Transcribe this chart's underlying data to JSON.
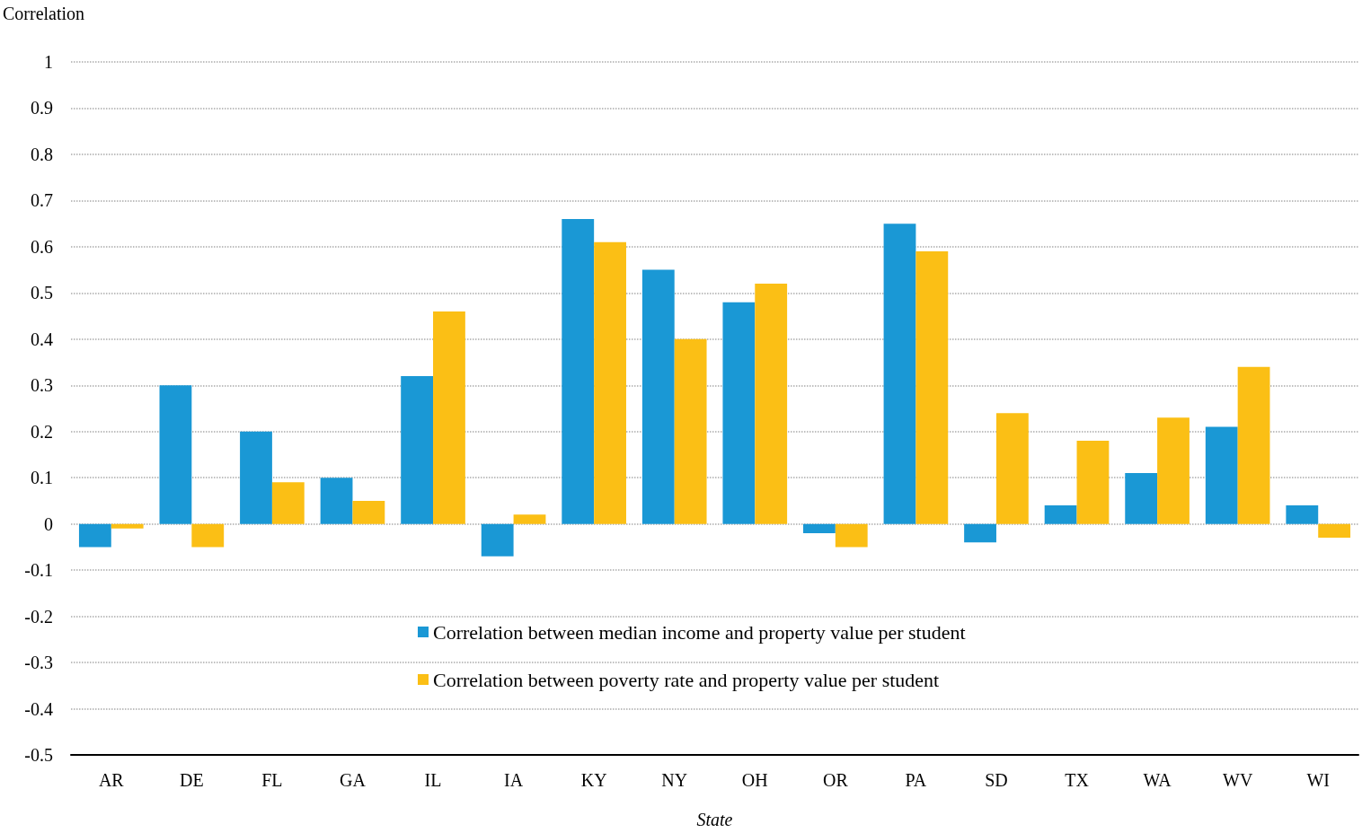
{
  "chart_data": {
    "type": "bar",
    "ylabel": "Correlation",
    "xlabel": "State",
    "categories": [
      "AR",
      "DE",
      "FL",
      "GA",
      "IL",
      "IA",
      "KY",
      "NY",
      "OH",
      "OR",
      "PA",
      "SD",
      "TX",
      "WA",
      "WV",
      "WI"
    ],
    "series": [
      {
        "name": "Correlation between median income and property value per student",
        "color": "#1a98d5",
        "values": [
          -0.05,
          0.3,
          0.2,
          0.1,
          0.32,
          -0.07,
          0.66,
          0.55,
          0.48,
          -0.02,
          0.65,
          -0.04,
          0.04,
          0.11,
          0.21,
          0.04
        ]
      },
      {
        "name": "Correlation between poverty rate and property value per student",
        "color": "#fbbf15",
        "values": [
          -0.01,
          -0.05,
          0.09,
          0.05,
          0.46,
          0.02,
          0.61,
          0.4,
          0.52,
          -0.05,
          0.59,
          0.24,
          0.18,
          0.23,
          0.34,
          -0.03
        ]
      }
    ],
    "ylim": [
      -0.5,
      1
    ],
    "yticks": [
      -0.5,
      -0.4,
      -0.3,
      -0.2,
      -0.1,
      0,
      0.1,
      0.2,
      0.3,
      0.4,
      0.5,
      0.6,
      0.7,
      0.8,
      0.9,
      1
    ],
    "grid": "y",
    "legend": "bottom"
  }
}
